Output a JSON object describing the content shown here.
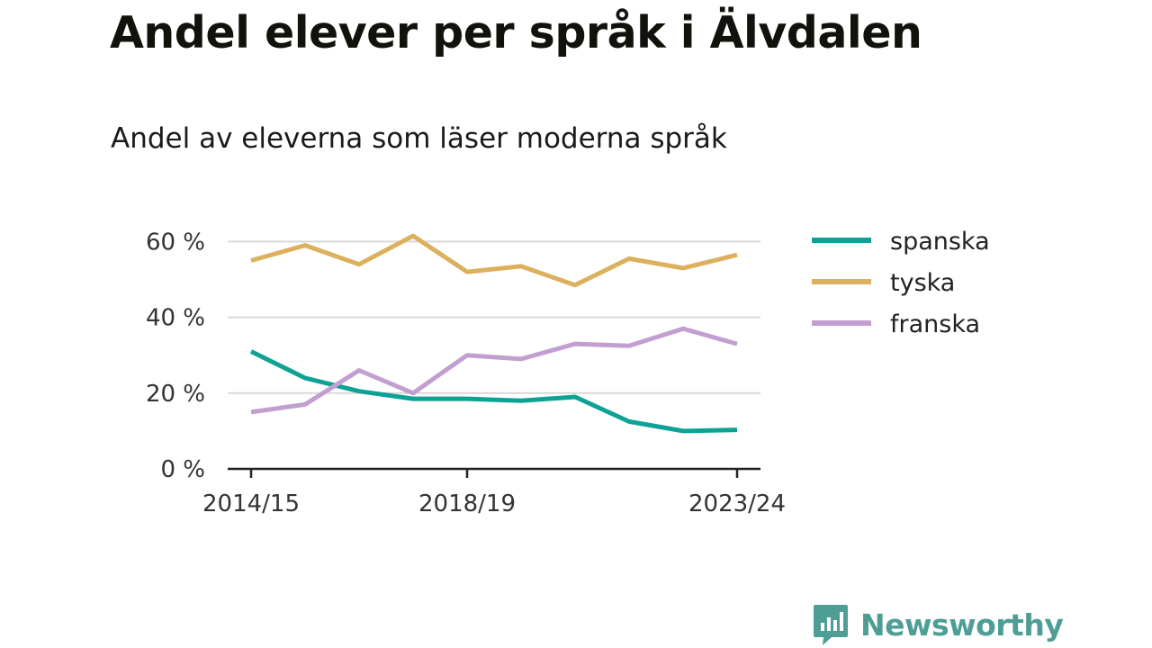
{
  "header": {
    "title": "Andel elever per språk i Älvdalen",
    "subtitle": "Andel av eleverna som läser moderna språk"
  },
  "brand": {
    "name": "Newsworthy",
    "icon": "newsworthy-logo-icon",
    "color": "#4e9e96"
  },
  "chart_data": {
    "type": "line",
    "title": "Andel elever per språk i Älvdalen",
    "subtitle": "Andel av eleverna som läser moderna språk",
    "x": [
      "2014/15",
      "2015/16",
      "2016/17",
      "2017/18",
      "2018/19",
      "2019/20",
      "2020/21",
      "2021/22",
      "2022/23",
      "2023/24"
    ],
    "x_tick_labels": [
      "2014/15",
      "2018/19",
      "2023/24"
    ],
    "y_ticks": [
      0,
      20,
      40,
      60
    ],
    "y_tick_labels": [
      "0 %",
      "20 %",
      "40 %",
      "60 %"
    ],
    "ylim": [
      0,
      62
    ],
    "xlabel": "",
    "ylabel": "",
    "grid": true,
    "legend_position": "right",
    "series": [
      {
        "name": "spanska",
        "color": "#0ea195",
        "values": [
          31,
          24,
          20.5,
          18.5,
          18.5,
          18,
          19,
          12.5,
          10,
          10.3
        ]
      },
      {
        "name": "tyska",
        "color": "#dcb05c",
        "values": [
          55,
          59,
          54,
          61.5,
          52,
          53.5,
          48.5,
          55.5,
          53,
          56.5
        ]
      },
      {
        "name": "franska",
        "color": "#c29fd0",
        "values": [
          15,
          17,
          26,
          20,
          30,
          29,
          33,
          32.5,
          37,
          33
        ]
      }
    ]
  }
}
